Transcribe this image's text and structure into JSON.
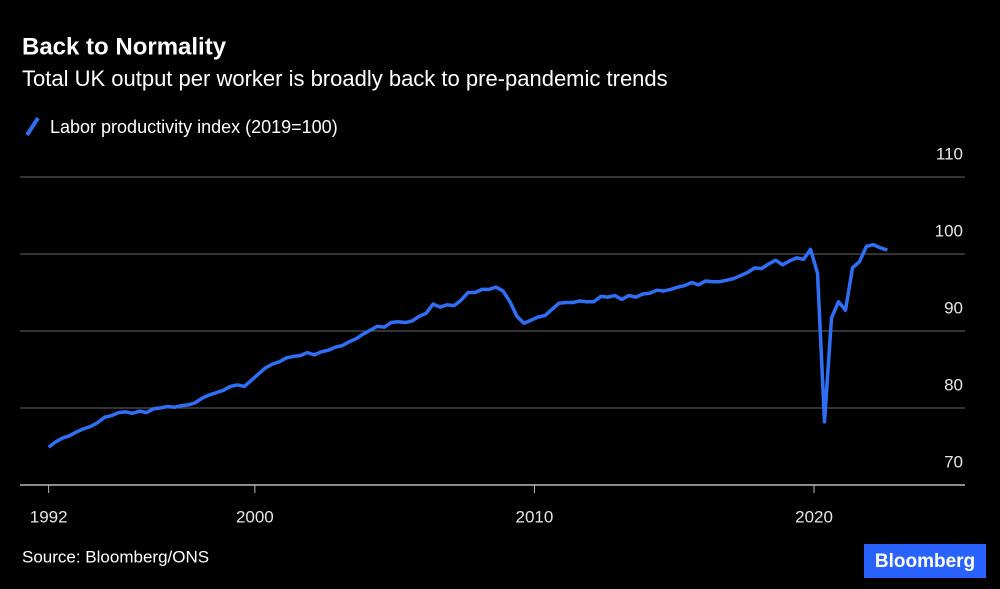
{
  "chart_data": {
    "type": "line",
    "title": "Back to Normality",
    "subtitle": "Total UK output per worker is broadly back to pre-pandemic trends",
    "source": "Source: Bloomberg/ONS",
    "logo": "Bloomberg",
    "x": [
      1992.625,
      1992.875,
      1993.125,
      1993.375,
      1993.625,
      1993.875,
      1994.125,
      1994.375,
      1994.625,
      1994.875,
      1995.125,
      1995.375,
      1995.625,
      1995.875,
      1996.125,
      1996.375,
      1996.625,
      1996.875,
      1997.125,
      1997.375,
      1997.625,
      1997.875,
      1998.125,
      1998.375,
      1998.625,
      1998.875,
      1999.125,
      1999.375,
      1999.625,
      1999.875,
      2000.125,
      2000.375,
      2000.625,
      2000.875,
      2001.125,
      2001.375,
      2001.625,
      2001.875,
      2002.125,
      2002.375,
      2002.625,
      2002.875,
      2003.125,
      2003.375,
      2003.625,
      2003.875,
      2004.125,
      2004.375,
      2004.625,
      2004.875,
      2005.125,
      2005.375,
      2005.625,
      2005.875,
      2006.125,
      2006.375,
      2006.625,
      2006.875,
      2007.125,
      2007.375,
      2007.625,
      2007.875,
      2008.125,
      2008.375,
      2008.625,
      2008.875,
      2009.125,
      2009.375,
      2009.625,
      2009.875,
      2010.125,
      2010.375,
      2010.625,
      2010.875,
      2011.125,
      2011.375,
      2011.625,
      2011.875,
      2012.125,
      2012.375,
      2012.625,
      2012.875,
      2013.125,
      2013.375,
      2013.625,
      2013.875,
      2014.125,
      2014.375,
      2014.625,
      2014.875,
      2015.125,
      2015.375,
      2015.625,
      2015.875,
      2016.125,
      2016.375,
      2016.625,
      2016.875,
      2017.125,
      2017.375,
      2017.625,
      2017.875,
      2018.125,
      2018.375,
      2018.625,
      2018.875,
      2019.125,
      2019.375,
      2019.625,
      2019.875,
      2020.125,
      2020.375,
      2020.625,
      2020.875,
      2021.125,
      2021.375,
      2021.625,
      2021.875,
      2022.125,
      2022.375,
      2022.625
    ],
    "series": [
      {
        "name": "Labor productivity index (2019=100)",
        "color": "#2f6ff5",
        "values": [
          74.9,
          75.6,
          76.1,
          76.4,
          76.9,
          77.3,
          77.6,
          78.1,
          78.8,
          79.0,
          79.4,
          79.5,
          79.3,
          79.6,
          79.4,
          79.9,
          80.0,
          80.2,
          80.1,
          80.3,
          80.4,
          80.7,
          81.3,
          81.7,
          82.0,
          82.3,
          82.8,
          83.0,
          82.8,
          83.6,
          84.4,
          85.2,
          85.7,
          86.0,
          86.5,
          86.7,
          86.8,
          87.2,
          86.9,
          87.3,
          87.5,
          87.9,
          88.1,
          88.6,
          89.0,
          89.6,
          90.1,
          90.6,
          90.5,
          91.1,
          91.2,
          91.1,
          91.3,
          91.9,
          92.3,
          93.5,
          93.1,
          93.4,
          93.3,
          94.0,
          95.0,
          95.0,
          95.4,
          95.4,
          95.7,
          95.2,
          93.8,
          91.9,
          91.0,
          91.4,
          91.8,
          92.0,
          92.8,
          93.6,
          93.7,
          93.7,
          93.9,
          93.8,
          93.8,
          94.5,
          94.4,
          94.6,
          94.1,
          94.6,
          94.4,
          94.8,
          94.9,
          95.3,
          95.2,
          95.4,
          95.7,
          95.9,
          96.3,
          96.0,
          96.5,
          96.4,
          96.4,
          96.6,
          96.8,
          97.2,
          97.6,
          98.2,
          98.1,
          98.7,
          99.2,
          98.6,
          99.1,
          99.5,
          99.3,
          100.6,
          97.5,
          78.2,
          91.7,
          93.8,
          92.7,
          98.2,
          99.0,
          101.0,
          101.2,
          100.8,
          100.5
        ]
      }
    ],
    "xlim": [
      1991.6,
      2025.4
    ],
    "xticks": [
      {
        "value": 1992.625,
        "label": "1992"
      },
      2000,
      2010,
      2020
    ],
    "ylim": [
      70,
      110
    ],
    "yticks": [
      70,
      80,
      90,
      100,
      110
    ],
    "grid": true
  }
}
